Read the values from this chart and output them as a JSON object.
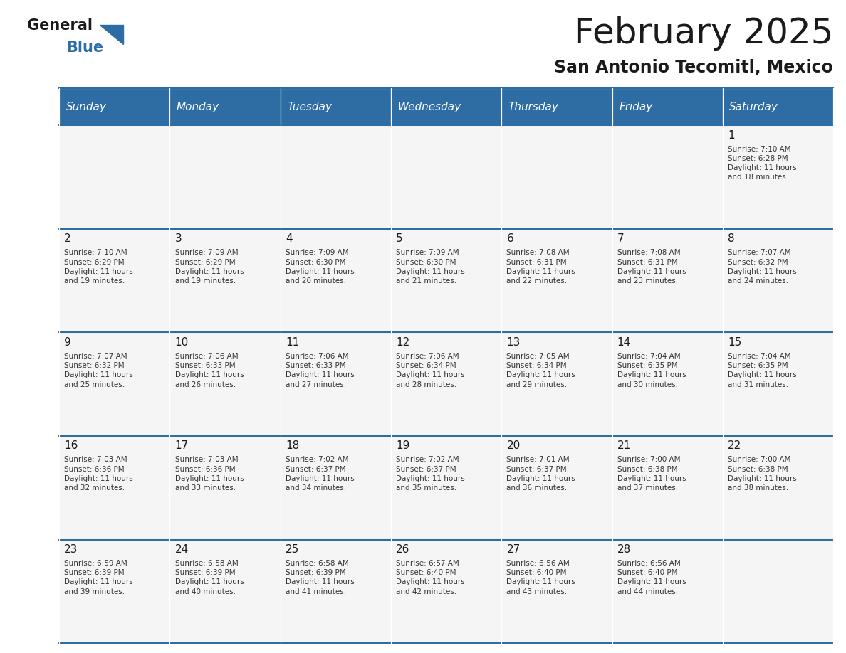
{
  "title": "February 2025",
  "subtitle": "San Antonio Tecomitl, Mexico",
  "header_bg": "#2E6DA4",
  "header_text_color": "#FFFFFF",
  "cell_bg": "#F5F5F5",
  "border_color": "#2E6DA4",
  "text_color": "#333333",
  "days_of_week": [
    "Sunday",
    "Monday",
    "Tuesday",
    "Wednesday",
    "Thursday",
    "Friday",
    "Saturday"
  ],
  "calendar_data": [
    [
      null,
      null,
      null,
      null,
      null,
      null,
      {
        "day": 1,
        "sunrise": "7:10 AM",
        "sunset": "6:28 PM",
        "daylight": "11 hours\nand 18 minutes."
      }
    ],
    [
      {
        "day": 2,
        "sunrise": "7:10 AM",
        "sunset": "6:29 PM",
        "daylight": "11 hours\nand 19 minutes."
      },
      {
        "day": 3,
        "sunrise": "7:09 AM",
        "sunset": "6:29 PM",
        "daylight": "11 hours\nand 19 minutes."
      },
      {
        "day": 4,
        "sunrise": "7:09 AM",
        "sunset": "6:30 PM",
        "daylight": "11 hours\nand 20 minutes."
      },
      {
        "day": 5,
        "sunrise": "7:09 AM",
        "sunset": "6:30 PM",
        "daylight": "11 hours\nand 21 minutes."
      },
      {
        "day": 6,
        "sunrise": "7:08 AM",
        "sunset": "6:31 PM",
        "daylight": "11 hours\nand 22 minutes."
      },
      {
        "day": 7,
        "sunrise": "7:08 AM",
        "sunset": "6:31 PM",
        "daylight": "11 hours\nand 23 minutes."
      },
      {
        "day": 8,
        "sunrise": "7:07 AM",
        "sunset": "6:32 PM",
        "daylight": "11 hours\nand 24 minutes."
      }
    ],
    [
      {
        "day": 9,
        "sunrise": "7:07 AM",
        "sunset": "6:32 PM",
        "daylight": "11 hours\nand 25 minutes."
      },
      {
        "day": 10,
        "sunrise": "7:06 AM",
        "sunset": "6:33 PM",
        "daylight": "11 hours\nand 26 minutes."
      },
      {
        "day": 11,
        "sunrise": "7:06 AM",
        "sunset": "6:33 PM",
        "daylight": "11 hours\nand 27 minutes."
      },
      {
        "day": 12,
        "sunrise": "7:06 AM",
        "sunset": "6:34 PM",
        "daylight": "11 hours\nand 28 minutes."
      },
      {
        "day": 13,
        "sunrise": "7:05 AM",
        "sunset": "6:34 PM",
        "daylight": "11 hours\nand 29 minutes."
      },
      {
        "day": 14,
        "sunrise": "7:04 AM",
        "sunset": "6:35 PM",
        "daylight": "11 hours\nand 30 minutes."
      },
      {
        "day": 15,
        "sunrise": "7:04 AM",
        "sunset": "6:35 PM",
        "daylight": "11 hours\nand 31 minutes."
      }
    ],
    [
      {
        "day": 16,
        "sunrise": "7:03 AM",
        "sunset": "6:36 PM",
        "daylight": "11 hours\nand 32 minutes."
      },
      {
        "day": 17,
        "sunrise": "7:03 AM",
        "sunset": "6:36 PM",
        "daylight": "11 hours\nand 33 minutes."
      },
      {
        "day": 18,
        "sunrise": "7:02 AM",
        "sunset": "6:37 PM",
        "daylight": "11 hours\nand 34 minutes."
      },
      {
        "day": 19,
        "sunrise": "7:02 AM",
        "sunset": "6:37 PM",
        "daylight": "11 hours\nand 35 minutes."
      },
      {
        "day": 20,
        "sunrise": "7:01 AM",
        "sunset": "6:37 PM",
        "daylight": "11 hours\nand 36 minutes."
      },
      {
        "day": 21,
        "sunrise": "7:00 AM",
        "sunset": "6:38 PM",
        "daylight": "11 hours\nand 37 minutes."
      },
      {
        "day": 22,
        "sunrise": "7:00 AM",
        "sunset": "6:38 PM",
        "daylight": "11 hours\nand 38 minutes."
      }
    ],
    [
      {
        "day": 23,
        "sunrise": "6:59 AM",
        "sunset": "6:39 PM",
        "daylight": "11 hours\nand 39 minutes."
      },
      {
        "day": 24,
        "sunrise": "6:58 AM",
        "sunset": "6:39 PM",
        "daylight": "11 hours\nand 40 minutes."
      },
      {
        "day": 25,
        "sunrise": "6:58 AM",
        "sunset": "6:39 PM",
        "daylight": "11 hours\nand 41 minutes."
      },
      {
        "day": 26,
        "sunrise": "6:57 AM",
        "sunset": "6:40 PM",
        "daylight": "11 hours\nand 42 minutes."
      },
      {
        "day": 27,
        "sunrise": "6:56 AM",
        "sunset": "6:40 PM",
        "daylight": "11 hours\nand 43 minutes."
      },
      {
        "day": 28,
        "sunrise": "6:56 AM",
        "sunset": "6:40 PM",
        "daylight": "11 hours\nand 44 minutes."
      },
      null
    ]
  ]
}
